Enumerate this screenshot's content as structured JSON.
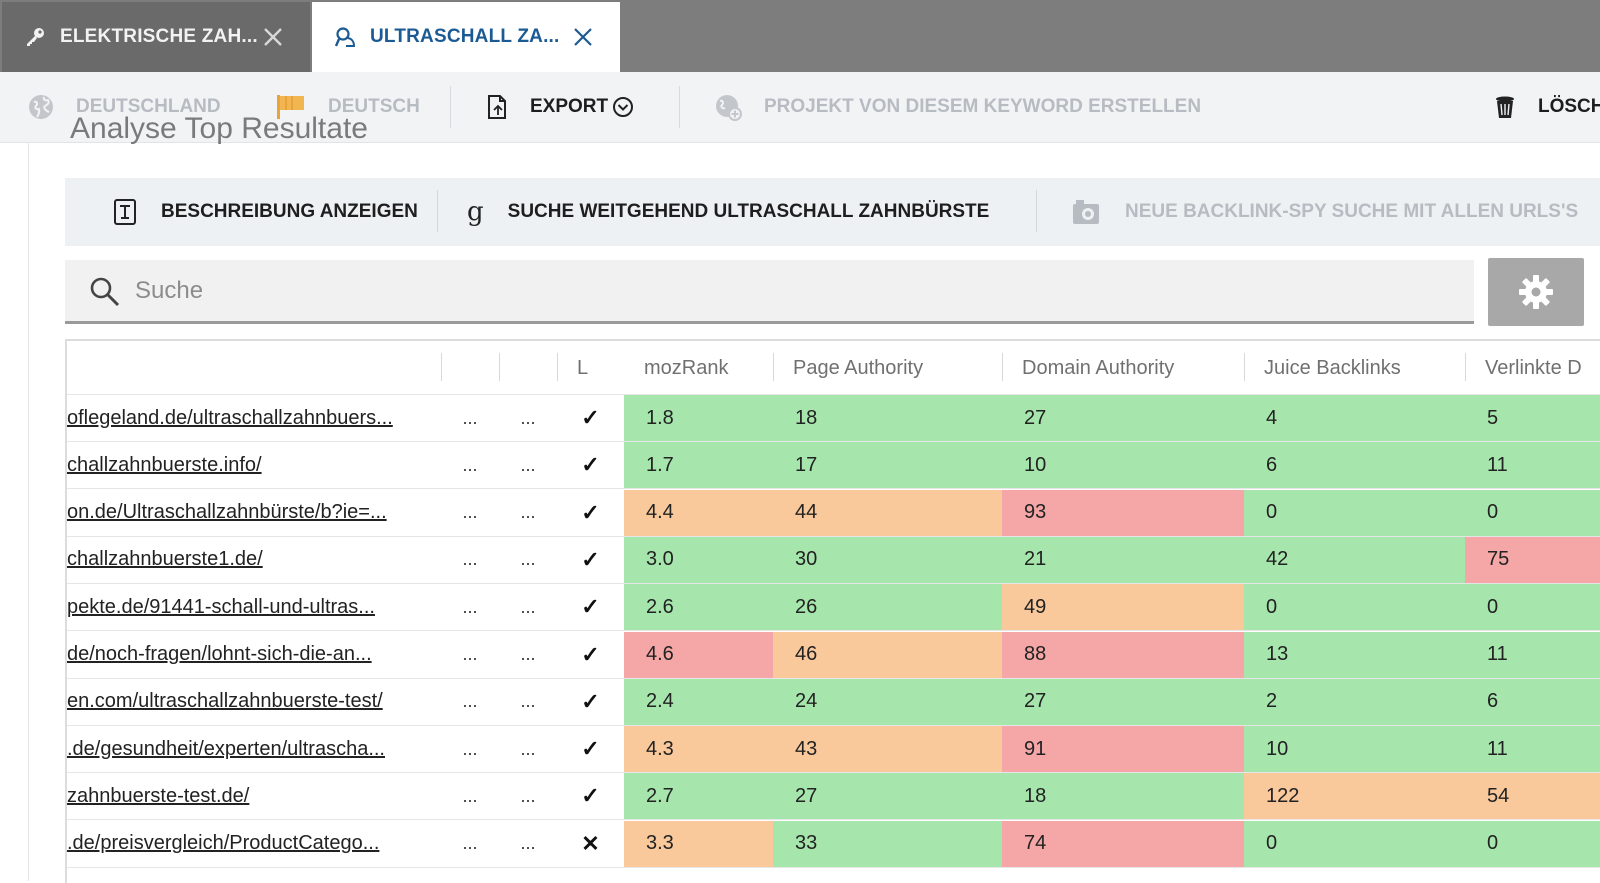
{
  "tabs": [
    {
      "label": "ELEKTRISCHE ZAH...",
      "icon": "key-icon",
      "active": false
    },
    {
      "label": "ULTRASCHALL ZA...",
      "icon": "search-person-icon",
      "active": true
    }
  ],
  "toolbar": {
    "country": "DEUTSCHLAND",
    "language": "DEUTSCH",
    "export": "EXPORT",
    "create_project": "PROJEKT VON DIESEM KEYWORD ERSTELLEN",
    "delete": "LÖSCH"
  },
  "section": {
    "title": "Analyse Top Resultate"
  },
  "actions": {
    "show_description": "BESCHREIBUNG ANZEIGEN",
    "search_broad": "SUCHE WEITGEHEND ULTRASCHALL ZAHNBÜRSTE",
    "backlink_spy": "NEUE BACKLINK-SPY SUCHE MIT ALLEN URLS'S"
  },
  "search": {
    "placeholder": "Suche"
  },
  "table": {
    "columns": [
      "",
      "",
      "",
      "L",
      "mozRank",
      "Page Authority",
      "Domain Authority",
      "Juice Backlinks",
      "Verlinkte D"
    ],
    "rows": [
      {
        "url": "oflegeland.de/ultraschallzahnbuers...",
        "a": "...",
        "b": "...",
        "ok": "✓",
        "moz": "1.8",
        "pa": "18",
        "da": "27",
        "juice": "4",
        "linked": "5",
        "moz_c": "green",
        "pa_c": "green",
        "da_c": "green",
        "juice_c": "green",
        "linked_c": "green"
      },
      {
        "url": "challzahnbuerste.info/",
        "a": "...",
        "b": "...",
        "ok": "✓",
        "moz": "1.7",
        "pa": "17",
        "da": "10",
        "juice": "6",
        "linked": "11",
        "moz_c": "green",
        "pa_c": "green",
        "da_c": "green",
        "juice_c": "green",
        "linked_c": "green"
      },
      {
        "url": "on.de/Ultraschallzahnbürste/b?ie=...",
        "a": "...",
        "b": "...",
        "ok": "✓",
        "moz": "4.4",
        "pa": "44",
        "da": "93",
        "juice": "0",
        "linked": "0",
        "moz_c": "orange",
        "pa_c": "orange",
        "da_c": "red",
        "juice_c": "green",
        "linked_c": "green"
      },
      {
        "url": "challzahnbuerste1.de/",
        "a": "...",
        "b": "...",
        "ok": "✓",
        "moz": "3.0",
        "pa": "30",
        "da": "21",
        "juice": "42",
        "linked": "75",
        "moz_c": "green",
        "pa_c": "green",
        "da_c": "green",
        "juice_c": "green",
        "linked_c": "red"
      },
      {
        "url": "pekte.de/91441-schall-und-ultras...",
        "a": "...",
        "b": "...",
        "ok": "✓",
        "moz": "2.6",
        "pa": "26",
        "da": "49",
        "juice": "0",
        "linked": "0",
        "moz_c": "green",
        "pa_c": "green",
        "da_c": "orange",
        "juice_c": "green",
        "linked_c": "green"
      },
      {
        "url": "de/noch-fragen/lohnt-sich-die-an...",
        "a": "...",
        "b": "...",
        "ok": "✓",
        "moz": "4.6",
        "pa": "46",
        "da": "88",
        "juice": "13",
        "linked": "11",
        "moz_c": "red",
        "pa_c": "orange",
        "da_c": "red",
        "juice_c": "green",
        "linked_c": "green"
      },
      {
        "url": "en.com/ultraschallzahnbuerste-test/",
        "a": "...",
        "b": "...",
        "ok": "✓",
        "moz": "2.4",
        "pa": "24",
        "da": "27",
        "juice": "2",
        "linked": "6",
        "moz_c": "green",
        "pa_c": "green",
        "da_c": "green",
        "juice_c": "green",
        "linked_c": "green"
      },
      {
        "url": ".de/gesundheit/experten/ultrascha...",
        "a": "...",
        "b": "...",
        "ok": "✓",
        "moz": "4.3",
        "pa": "43",
        "da": "91",
        "juice": "10",
        "linked": "11",
        "moz_c": "orange",
        "pa_c": "orange",
        "da_c": "red",
        "juice_c": "green",
        "linked_c": "green"
      },
      {
        "url": "zahnbuerste-test.de/",
        "a": "...",
        "b": "...",
        "ok": "✓",
        "moz": "2.7",
        "pa": "27",
        "da": "18",
        "juice": "122",
        "linked": "54",
        "moz_c": "green",
        "pa_c": "green",
        "da_c": "green",
        "juice_c": "orange",
        "linked_c": "orange"
      },
      {
        "url": ".de/preisvergleich/ProductCatego...",
        "a": "...",
        "b": "...",
        "ok": "✕",
        "moz": "3.3",
        "pa": "33",
        "da": "74",
        "juice": "0",
        "linked": "0",
        "moz_c": "orange",
        "pa_c": "green",
        "da_c": "red",
        "juice_c": "green",
        "linked_c": "green"
      }
    ]
  },
  "colors": {
    "green": "#a6e6ad",
    "orange": "#f9c99c",
    "red": "#f5a6a6",
    "accent": "#1c5a94"
  }
}
